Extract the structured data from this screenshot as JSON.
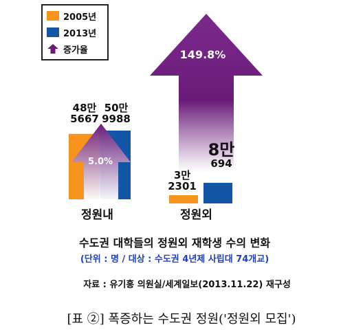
{
  "legend": {
    "items": [
      {
        "label": "2005년",
        "color": "#f7941d",
        "icon": "square"
      },
      {
        "label": "2013년",
        "color": "#1356a6",
        "icon": "square"
      },
      {
        "label": "증가율",
        "color": "#6a1b79",
        "icon": "up-arrow"
      }
    ]
  },
  "chart_data": {
    "type": "bar",
    "categories": [
      "정원내",
      "정원외"
    ],
    "series": [
      {
        "name": "2005년",
        "values": [
          485667,
          32301
        ]
      },
      {
        "name": "2013년",
        "values": [
          509988,
          80694
        ]
      }
    ],
    "growth": [
      {
        "category": "정원내",
        "label": "5.0%"
      },
      {
        "category": "정원외",
        "label": "149.8%"
      }
    ],
    "data_labels": [
      {
        "category": "정원내",
        "series": "2005년",
        "line1": "48만",
        "line2": "5667"
      },
      {
        "category": "정원내",
        "series": "2013년",
        "line1": "50만",
        "line2": "9988"
      },
      {
        "category": "정원외",
        "series": "2005년",
        "line1": "3만",
        "line2": "2301"
      },
      {
        "category": "정원외",
        "series": "2013년",
        "line1": "8만",
        "line2": "694"
      }
    ],
    "colors": {
      "s2005": "#f7941d",
      "s2013": "#1356a6",
      "arrow": "#6a1b79"
    }
  },
  "title": "수도권 대학들의 정원외 재학생 수의 변화",
  "unit_note": "(단위 : 명 / 대상 : 수도권 4년제 사립대 74개교)",
  "source": "자료 : 유기홍 의원실/세계일보(2013.11.22) 재구성",
  "caption": "[표 ②] 폭증하는 수도권 정원('정원외 모집')"
}
